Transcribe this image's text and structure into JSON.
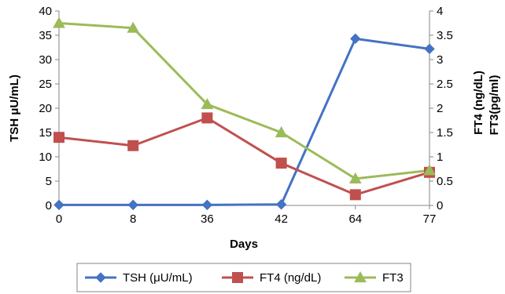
{
  "chart_data": {
    "type": "line",
    "categories": [
      "0",
      "8",
      "36",
      "42",
      "64",
      "77"
    ],
    "xlabel": "Days",
    "ylabel_left": "TSH μU/mL)",
    "ylabel_right": [
      "FT4 (ng/dL)",
      "FT3(pg/ml)"
    ],
    "ylim_left": [
      0,
      40
    ],
    "yticks_left": [
      "0",
      "5",
      "10",
      "15",
      "20",
      "25",
      "30",
      "35",
      "40"
    ],
    "ylim_right": [
      0,
      4
    ],
    "yticks_right": [
      "0",
      "0.5",
      "1",
      "1.5",
      "2",
      "2.5",
      "3",
      "3.5",
      "4"
    ],
    "grid": false,
    "legend_position": "bottom",
    "series": [
      {
        "name": "TSH (μU/mL)",
        "axis": "left",
        "marker": "diamond",
        "color": "#4472C4",
        "values": [
          0.1,
          0.1,
          0.1,
          0.2,
          34.3,
          32.2
        ]
      },
      {
        "name": "FT4 (ng/dL)",
        "axis": "right",
        "marker": "square",
        "color": "#C0504D",
        "values": [
          1.4,
          1.23,
          1.8,
          0.87,
          0.22,
          0.68
        ]
      },
      {
        "name": "FT3",
        "axis": "right",
        "marker": "triangle",
        "color": "#9BBB59",
        "values": [
          3.75,
          3.65,
          2.08,
          1.5,
          0.55,
          0.72
        ]
      }
    ]
  }
}
